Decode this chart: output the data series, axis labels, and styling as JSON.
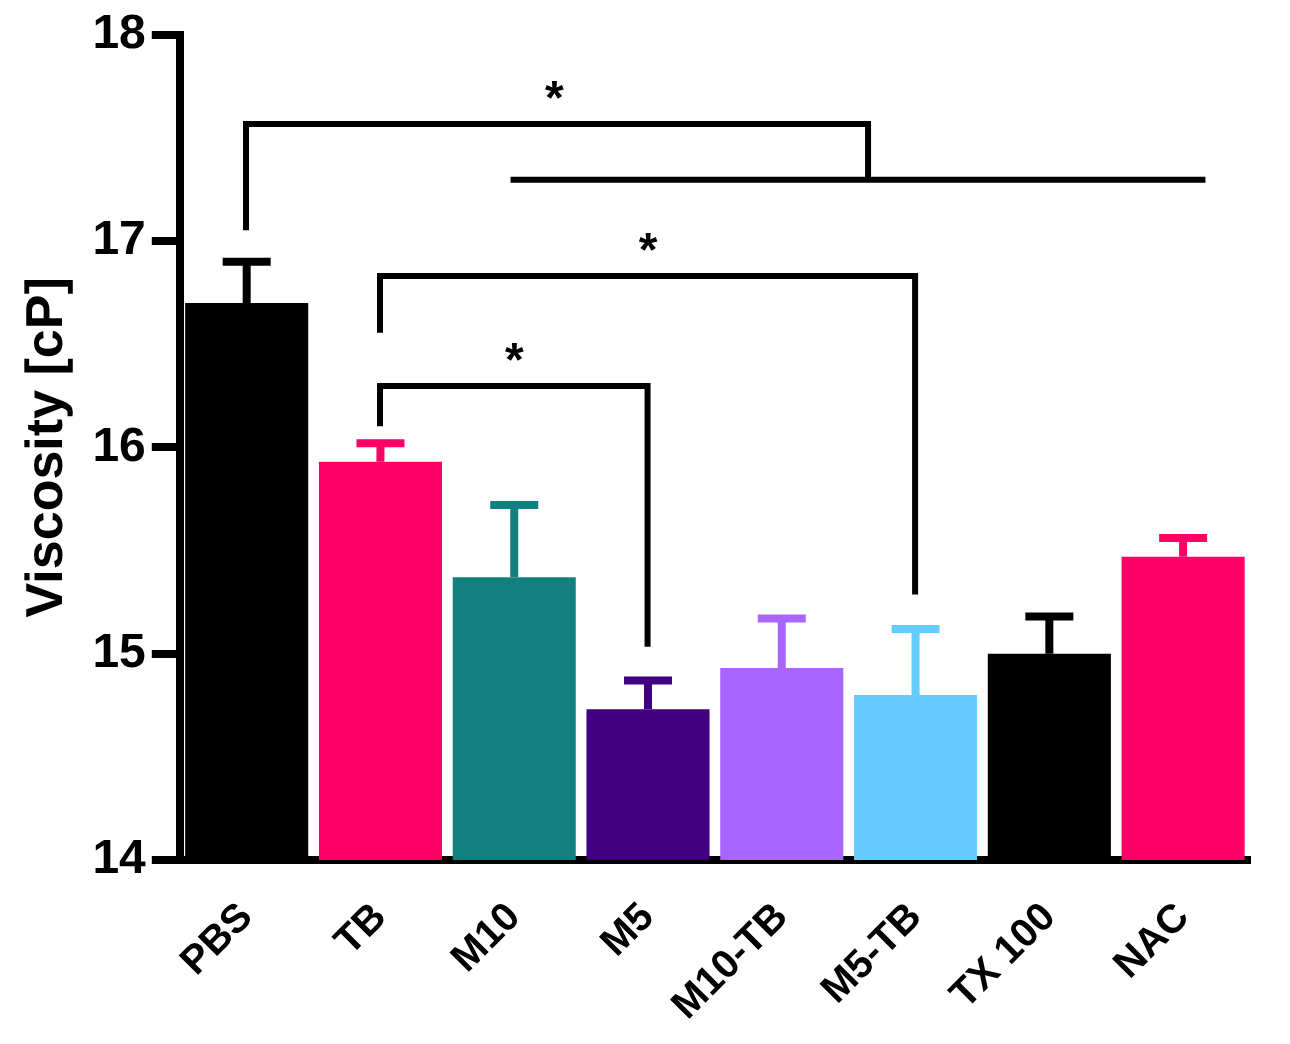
{
  "chart_data": {
    "type": "bar",
    "ylabel": "Viscosity [cP]",
    "categories": [
      "PBS",
      "TB",
      "M10",
      "M5",
      "M10-TB",
      "M5-TB",
      "TX 100",
      "NAC"
    ],
    "values": [
      16.7,
      15.93,
      15.37,
      14.73,
      14.93,
      14.8,
      15.0,
      15.47
    ],
    "colors": [
      "#000000",
      "#ff0066",
      "#138080",
      "#420080",
      "#a866ff",
      "#66ccff",
      "#000000",
      "#ff0066"
    ],
    "errors": [
      [
        16.7,
        16.9
      ],
      [
        15.93,
        16.02
      ],
      [
        15.37,
        15.72
      ],
      [
        14.73,
        14.87
      ],
      [
        14.93,
        15.17
      ],
      [
        14.8,
        15.12
      ],
      [
        15.0,
        15.18
      ],
      [
        15.47,
        15.56
      ]
    ],
    "ylim": [
      14,
      18
    ],
    "yticks": [
      14,
      15,
      16,
      17,
      18
    ],
    "grid": false,
    "legend": false,
    "annotations": [
      "*",
      "*",
      "*"
    ]
  }
}
